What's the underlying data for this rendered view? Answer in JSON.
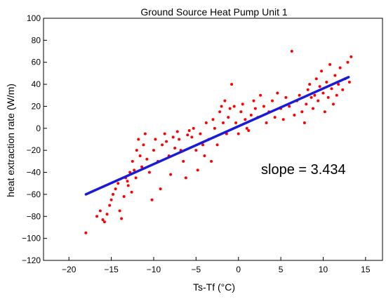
{
  "chart_data": {
    "type": "scatter",
    "title": "Ground Source Heat Pump Unit 1",
    "xlabel": "Ts-Tf (°C)",
    "ylabel": "heat extraction rate (W/m)",
    "xlim": [
      -23,
      17
    ],
    "ylim": [
      -120,
      100
    ],
    "xticks": [
      -20,
      -15,
      -10,
      -5,
      0,
      5,
      10,
      15
    ],
    "yticks": [
      -120,
      -100,
      -80,
      -60,
      -40,
      -20,
      0,
      20,
      40,
      60,
      80,
      100
    ],
    "grid": false,
    "annotation": "slope = 3.434",
    "colors": {
      "points": "#ff0000",
      "fit_line": "#1a1adb"
    },
    "fit_line": {
      "x": [
        -18,
        13
      ],
      "y": [
        -60,
        46.5
      ]
    },
    "points": [
      [
        -18.0,
        -95
      ],
      [
        -16.7,
        -80
      ],
      [
        -16.3,
        -75
      ],
      [
        -16.0,
        -83
      ],
      [
        -15.8,
        -85
      ],
      [
        -15.5,
        -78
      ],
      [
        -15.2,
        -70
      ],
      [
        -15.0,
        -65
      ],
      [
        -14.8,
        -60
      ],
      [
        -14.5,
        -55
      ],
      [
        -14.2,
        -50
      ],
      [
        -14.0,
        -75
      ],
      [
        -13.8,
        -82
      ],
      [
        -13.5,
        -62
      ],
      [
        -13.3,
        -45
      ],
      [
        -13.1,
        -48
      ],
      [
        -13.0,
        -52
      ],
      [
        -12.8,
        -40
      ],
      [
        -12.6,
        -58
      ],
      [
        -12.5,
        -30
      ],
      [
        -12.3,
        -38
      ],
      [
        -12.1,
        -45
      ],
      [
        -12.0,
        -20
      ],
      [
        -11.8,
        -10
      ],
      [
        -11.6,
        -25
      ],
      [
        -11.4,
        -35
      ],
      [
        -11.2,
        -15
      ],
      [
        -11.0,
        -5
      ],
      [
        -10.8,
        -28
      ],
      [
        -10.5,
        -40
      ],
      [
        -10.2,
        -65
      ],
      [
        -10.0,
        -20
      ],
      [
        -9.8,
        -10
      ],
      [
        -9.5,
        -30
      ],
      [
        -9.2,
        -55
      ],
      [
        -9.0,
        -15
      ],
      [
        -8.7,
        -5
      ],
      [
        -8.5,
        -12
      ],
      [
        -8.2,
        -25
      ],
      [
        -8.0,
        -42
      ],
      [
        -7.7,
        -8
      ],
      [
        -7.5,
        -18
      ],
      [
        -7.2,
        -3
      ],
      [
        -7.0,
        -10
      ],
      [
        -6.8,
        -20
      ],
      [
        -6.5,
        -30
      ],
      [
        -6.2,
        -45
      ],
      [
        -6.0,
        -6
      ],
      [
        -5.8,
        -2
      ],
      [
        -5.5,
        -8
      ],
      [
        -5.3,
        0
      ],
      [
        -5.0,
        -20
      ],
      [
        -4.8,
        -38
      ],
      [
        -4.5,
        -5
      ],
      [
        -4.2,
        -15
      ],
      [
        -4.0,
        -25
      ],
      [
        -3.8,
        5
      ],
      [
        -3.5,
        -10
      ],
      [
        -3.2,
        -30
      ],
      [
        -3.0,
        8
      ],
      [
        -2.8,
        0
      ],
      [
        -2.5,
        -15
      ],
      [
        -2.2,
        15
      ],
      [
        -2.0,
        20
      ],
      [
        -1.8,
        5
      ],
      [
        -1.6,
        25
      ],
      [
        -1.4,
        -5
      ],
      [
        -1.2,
        10
      ],
      [
        -1.0,
        18
      ],
      [
        -0.8,
        40
      ],
      [
        -0.5,
        20
      ],
      [
        -0.3,
        5
      ],
      [
        0.0,
        -5
      ],
      [
        0.3,
        15
      ],
      [
        0.5,
        22
      ],
      [
        0.8,
        8
      ],
      [
        1.0,
        0
      ],
      [
        1.2,
        -2
      ],
      [
        1.5,
        12
      ],
      [
        1.8,
        25
      ],
      [
        2.0,
        18
      ],
      [
        2.3,
        10
      ],
      [
        2.6,
        30
      ],
      [
        3.0,
        20
      ],
      [
        3.3,
        5
      ],
      [
        3.6,
        15
      ],
      [
        4.0,
        25
      ],
      [
        4.3,
        10
      ],
      [
        4.6,
        32
      ],
      [
        5.0,
        18
      ],
      [
        5.3,
        8
      ],
      [
        5.6,
        28
      ],
      [
        6.0,
        20
      ],
      [
        6.3,
        70
      ],
      [
        6.6,
        12
      ],
      [
        6.9,
        25
      ],
      [
        7.2,
        30
      ],
      [
        7.5,
        15
      ],
      [
        7.8,
        5
      ],
      [
        8.0,
        22
      ],
      [
        8.2,
        35
      ],
      [
        8.4,
        40
      ],
      [
        8.6,
        28
      ],
      [
        8.8,
        18
      ],
      [
        9.0,
        30
      ],
      [
        9.2,
        45
      ],
      [
        9.4,
        25
      ],
      [
        9.6,
        38
      ],
      [
        9.8,
        52
      ],
      [
        10.0,
        32
      ],
      [
        10.2,
        15
      ],
      [
        10.4,
        42
      ],
      [
        10.6,
        28
      ],
      [
        10.8,
        58
      ],
      [
        11.0,
        36
      ],
      [
        11.2,
        22
      ],
      [
        11.4,
        48
      ],
      [
        11.6,
        30
      ],
      [
        11.8,
        40
      ],
      [
        12.0,
        55
      ],
      [
        12.3,
        35
      ],
      [
        12.6,
        45
      ],
      [
        12.9,
        60
      ],
      [
        13.1,
        42
      ],
      [
        13.3,
        65
      ]
    ]
  }
}
